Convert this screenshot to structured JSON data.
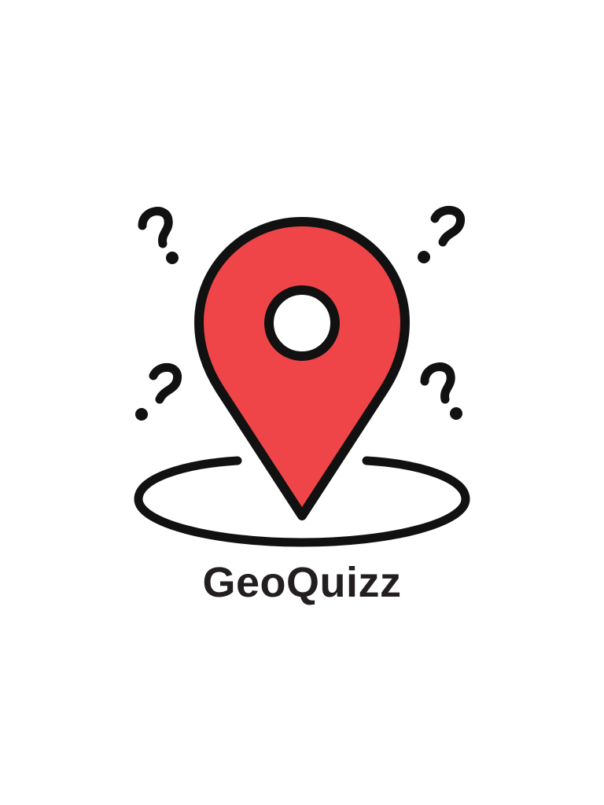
{
  "splash": {
    "app_name": "GeoQuizz"
  },
  "logo": {
    "icon": "map-pin-with-question-marks-icon",
    "pin_color": "#ef4548",
    "outline_color": "#111111",
    "background_color": "#ffffff"
  },
  "text_color": "#231f20"
}
